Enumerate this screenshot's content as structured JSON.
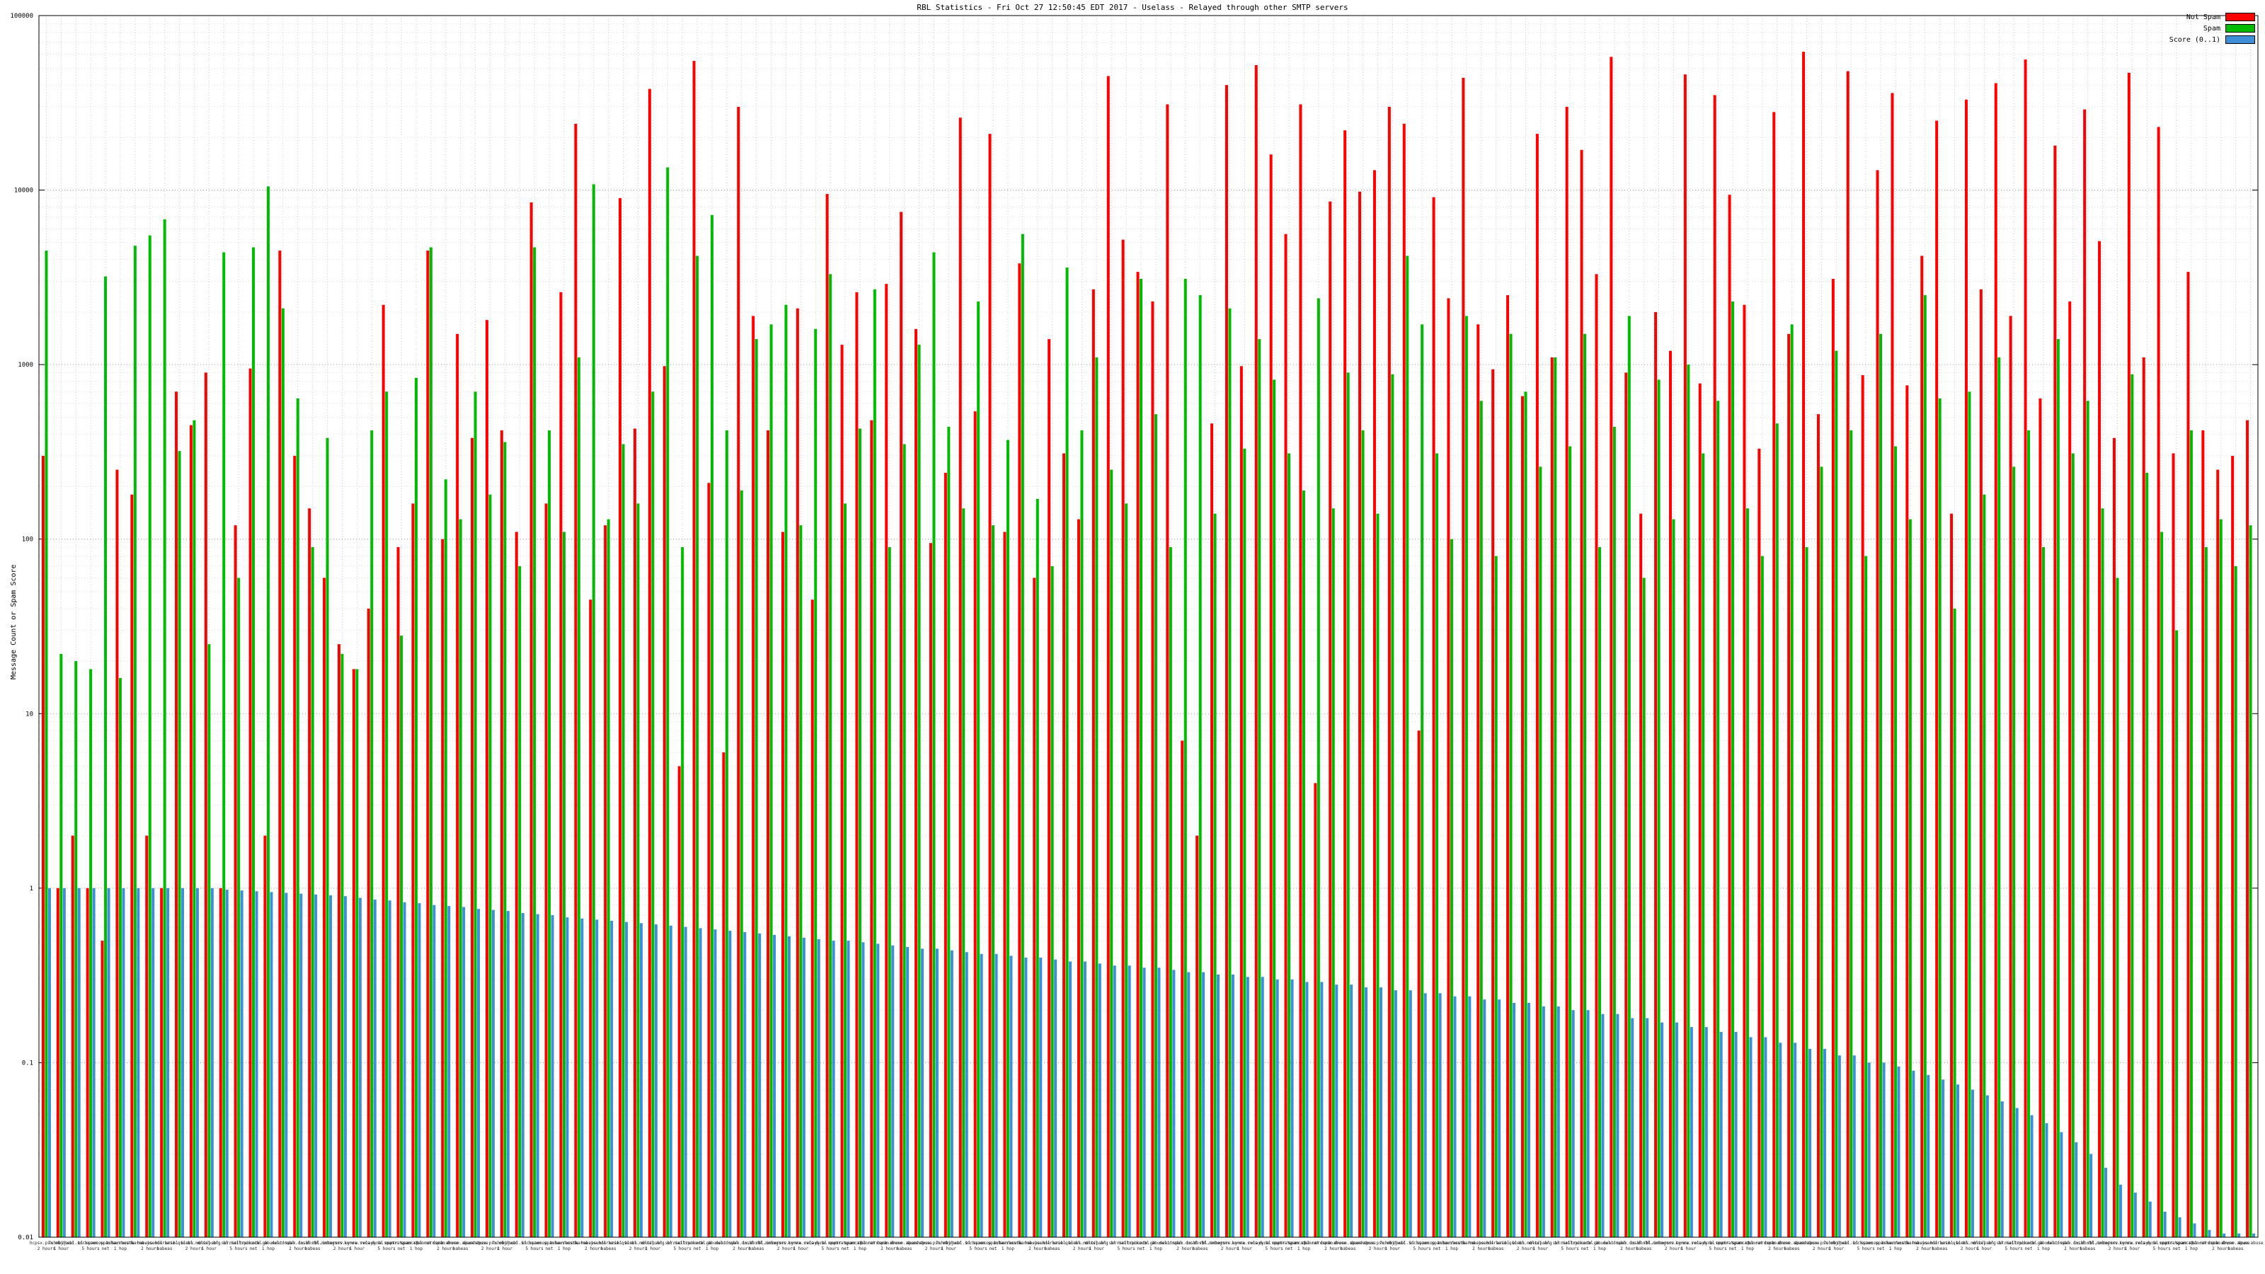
{
  "chart_data": {
    "type": "bar",
    "title": "RBL Statistics - Fri Oct 27 12:50:45 EDT 2017 - Uselass - Relayed through other SMTP servers",
    "ylabel": "Message Count or Spam Score",
    "scale": "log",
    "ylim": [
      0.01,
      100000
    ],
    "grid": true,
    "legend_position": "top-right",
    "y_ticks": [
      "100000",
      "10000",
      "1000",
      "100",
      "10",
      "1",
      "0.1",
      "0.01"
    ],
    "series": [
      {
        "name": "Not Spam",
        "color": "#ff0000",
        "values": [
          300,
          1,
          2,
          1,
          0.5,
          250,
          180,
          2,
          1,
          700,
          450,
          900,
          1,
          120,
          950,
          2,
          4500,
          300,
          150,
          60,
          25,
          18,
          40,
          2200,
          90,
          160,
          4500,
          100,
          1500,
          380,
          1800,
          420,
          110,
          8500,
          160,
          2600,
          24000,
          45,
          120,
          9000,
          430,
          38000,
          980,
          5,
          55000,
          210,
          6,
          30000,
          1900,
          420,
          110,
          2100,
          45,
          9500,
          1300,
          2600,
          480,
          2900,
          7500,
          1600,
          95,
          240,
          26000,
          540,
          21000,
          110,
          3800,
          60,
          1400,
          310,
          130,
          2700,
          45000,
          5200,
          3400,
          2300,
          31000,
          7,
          2,
          460,
          40000,
          980,
          52000,
          16000,
          5600,
          31000,
          4,
          8600,
          22000,
          9800,
          13000,
          30000,
          24000,
          8,
          9100,
          2400,
          44000,
          1700,
          940,
          2500,
          660,
          21000,
          1100,
          30000,
          17000,
          3300,
          58000,
          900,
          140,
          2000,
          1200,
          46000,
          780,
          35000,
          9400,
          2200,
          330,
          28000,
          1500,
          62000,
          520,
          3100,
          48000,
          870,
          13000,
          36000,
          760,
          4200,
          25000,
          140,
          33000,
          2700,
          41000,
          1900,
          56000,
          640,
          18000,
          2300,
          29000,
          5100,
          380,
          47000,
          1100,
          23000,
          310,
          3400,
          420,
          250,
          300,
          480
        ]
      },
      {
        "name": "Spam",
        "color": "#00bb00",
        "values": [
          4500,
          22,
          20,
          18,
          3200,
          16,
          4800,
          5500,
          6800,
          320,
          480,
          25,
          4400,
          60,
          4700,
          10500,
          2100,
          640,
          90,
          380,
          22,
          18,
          420,
          700,
          28,
          840,
          4700,
          220,
          130,
          700,
          180,
          360,
          70,
          4700,
          420,
          110,
          1100,
          10800,
          130,
          350,
          160,
          700,
          13500,
          90,
          4200,
          7200,
          420,
          190,
          1400,
          1700,
          2200,
          120,
          1600,
          3300,
          160,
          430,
          2700,
          90,
          350,
          1300,
          4400,
          440,
          150,
          2300,
          120,
          370,
          5600,
          170,
          70,
          3600,
          420,
          1100,
          250,
          160,
          3100,
          520,
          90,
          3100,
          2500,
          140,
          2100,
          330,
          1400,
          820,
          310,
          190,
          2400,
          150,
          900,
          420,
          140,
          880,
          4200,
          1700,
          310,
          100,
          1900,
          620,
          80,
          1500,
          700,
          260,
          1100,
          340,
          1500,
          90,
          440,
          1900,
          60,
          820,
          130,
          1000,
          310,
          620,
          2300,
          150,
          80,
          460,
          1700,
          90,
          260,
          1200,
          420,
          80,
          1500,
          340,
          130,
          2500,
          640,
          40,
          700,
          180,
          1100,
          260,
          420,
          90,
          1400,
          310,
          620,
          150,
          60,
          880,
          240,
          110,
          30,
          420,
          90,
          130,
          70,
          120
        ]
      },
      {
        "name": "Score (0..1)",
        "color": "#3d8ed8",
        "values": [
          1,
          1,
          1,
          1,
          1,
          1,
          1,
          1,
          1,
          1,
          1,
          1,
          0.98,
          0.97,
          0.96,
          0.95,
          0.94,
          0.93,
          0.92,
          0.91,
          0.9,
          0.88,
          0.86,
          0.85,
          0.83,
          0.82,
          0.8,
          0.79,
          0.78,
          0.76,
          0.75,
          0.74,
          0.72,
          0.71,
          0.7,
          0.68,
          0.67,
          0.66,
          0.65,
          0.64,
          0.63,
          0.62,
          0.61,
          0.6,
          0.59,
          0.58,
          0.57,
          0.56,
          0.55,
          0.54,
          0.53,
          0.52,
          0.51,
          0.5,
          0.5,
          0.49,
          0.48,
          0.47,
          0.46,
          0.45,
          0.45,
          0.44,
          0.43,
          0.42,
          0.42,
          0.41,
          0.4,
          0.4,
          0.39,
          0.38,
          0.38,
          0.37,
          0.36,
          0.36,
          0.35,
          0.35,
          0.34,
          0.33,
          0.33,
          0.32,
          0.32,
          0.31,
          0.31,
          0.3,
          0.3,
          0.29,
          0.29,
          0.28,
          0.28,
          0.27,
          0.27,
          0.26,
          0.26,
          0.25,
          0.25,
          0.24,
          0.24,
          0.23,
          0.23,
          0.22,
          0.22,
          0.21,
          0.21,
          0.2,
          0.2,
          0.19,
          0.19,
          0.18,
          0.18,
          0.17,
          0.17,
          0.16,
          0.16,
          0.15,
          0.15,
          0.14,
          0.14,
          0.13,
          0.13,
          0.12,
          0.12,
          0.11,
          0.11,
          0.1,
          0.1,
          0.095,
          0.09,
          0.085,
          0.08,
          0.075,
          0.07,
          0.065,
          0.06,
          0.055,
          0.05,
          0.045,
          0.04,
          0.035,
          0.03,
          0.025,
          0.02,
          0.018,
          0.016,
          0.014,
          0.013,
          0.012,
          0.011,
          0.01,
          0.01,
          0.01
        ]
      }
    ],
    "categories": [
      "hcpsx.psx.obj",
      "7uhnb.jwsc",
      "dnsbl.sorbs",
      "bl.spamcop",
      "zen.spamhaus",
      "b.barracuda",
      "hostkarma.j",
      "habeas.hil",
      "senderbase.q",
      "uribl.black",
      "surbl.multi",
      "dnswl.org",
      "psbl.surriel",
      "bl.mailspike",
      "truncate.gb",
      "cbl.abuseat",
      "dul.dnsbl",
      "spam.dnsbl",
      "ix.dnsbl.mn",
      "rbl.intersrv",
      "bogons.cymru",
      "korea.svcs",
      "relays.bl",
      "dyna.spamrat",
      "noptr.spamrat",
      "spam.spamrat",
      "bl.nordspam",
      "comb.abuse",
      "drone.abuse",
      "spam.abuse",
      "hcpsx.psx.obj",
      "7uhnb.jwsc",
      "dnsbl.sorbs",
      "bl.spamcop",
      "zen.spamhaus",
      "b.barracuda",
      "hostkarma.j",
      "habeas.hil",
      "senderbase.q",
      "uribl.black",
      "surbl.multi",
      "dnswl.org",
      "psbl.surriel",
      "bl.mailspike",
      "truncate.gb",
      "cbl.abuseat",
      "dul.dnsbl",
      "spam.dnsbl",
      "ix.dnsbl.mn",
      "rbl.intersrv",
      "bogons.cymru",
      "korea.svcs",
      "relays.bl",
      "dyna.spamrat",
      "noptr.spamrat",
      "spam.spamrat",
      "bl.nordspam",
      "comb.abuse",
      "drone.abuse",
      "spam.abuse",
      "hcpsx.psx.obj",
      "7uhnb.jwsc",
      "dnsbl.sorbs",
      "bl.spamcop",
      "zen.spamhaus",
      "b.barracuda",
      "hostkarma.j",
      "habeas.hil",
      "senderbase.q",
      "uribl.black",
      "surbl.multi",
      "dnswl.org",
      "psbl.surriel",
      "bl.mailspike",
      "truncate.gb",
      "cbl.abuseat",
      "dul.dnsbl",
      "spam.dnsbl",
      "ix.dnsbl.mn",
      "rbl.intersrv",
      "bogons.cymru",
      "korea.svcs",
      "relays.bl",
      "dyna.spamrat",
      "noptr.spamrat",
      "spam.spamrat",
      "bl.nordspam",
      "comb.abuse",
      "drone.abuse",
      "spam.abuse",
      "hcpsx.psx.obj",
      "7uhnb.jwsc",
      "dnsbl.sorbs",
      "bl.spamcop",
      "zen.spamhaus",
      "b.barracuda",
      "hostkarma.j",
      "habeas.hil",
      "senderbase.q",
      "uribl.black",
      "surbl.multi",
      "dnswl.org",
      "psbl.surriel",
      "bl.mailspike",
      "truncate.gb",
      "cbl.abuseat",
      "dul.dnsbl",
      "spam.dnsbl",
      "ix.dnsbl.mn",
      "rbl.intersrv",
      "bogons.cymru",
      "korea.svcs",
      "relays.bl",
      "dyna.spamrat",
      "noptr.spamrat",
      "spam.spamrat",
      "bl.nordspam",
      "comb.abuse",
      "drone.abuse",
      "spam.abuse",
      "hcpsx.psx.obj",
      "7uhnb.jwsc",
      "dnsbl.sorbs",
      "bl.spamcop",
      "zen.spamhaus",
      "b.barracuda",
      "hostkarma.j",
      "habeas.hil",
      "senderbase.q",
      "uribl.black",
      "surbl.multi",
      "dnswl.org",
      "psbl.surriel",
      "bl.mailspike",
      "truncate.gb",
      "cbl.abuseat",
      "dul.dnsbl",
      "spam.dnsbl",
      "ix.dnsbl.mn",
      "rbl.intersrv",
      "bogons.cymru",
      "korea.svcs",
      "relays.bl",
      "dyna.spamrat",
      "noptr.spamrat",
      "spam.spamrat",
      "bl.nordspam",
      "comb.abuse",
      "drone.abuse",
      "spam.abuse"
    ],
    "sublabels": [
      "2 hours",
      "1 hour",
      "",
      "5 hours",
      "net",
      "1 hop",
      "",
      "2 hours",
      "habeas",
      "",
      "2 hours",
      "1 hour",
      "",
      "5 hours",
      "net",
      "1 hop",
      "",
      "2 hours",
      "habeas",
      "",
      "2 hours",
      "1 hour",
      "",
      "5 hours",
      "net",
      "1 hop",
      "",
      "2 hours",
      "habeas",
      "",
      "2 hours",
      "1 hour",
      "",
      "5 hours",
      "net",
      "1 hop",
      "",
      "2 hours",
      "habeas",
      "",
      "2 hours",
      "1 hour",
      "",
      "5 hours",
      "net",
      "1 hop",
      "",
      "2 hours",
      "habeas",
      "",
      "2 hours",
      "1 hour",
      "",
      "5 hours",
      "net",
      "1 hop",
      "",
      "2 hours",
      "habeas",
      "",
      "2 hours",
      "1 hour",
      "",
      "5 hours",
      "net",
      "1 hop",
      "",
      "2 hours",
      "habeas",
      "",
      "2 hours",
      "1 hour",
      "",
      "5 hours",
      "net",
      "1 hop",
      "",
      "2 hours",
      "habeas",
      "",
      "2 hours",
      "1 hour",
      "",
      "5 hours",
      "net",
      "1 hop",
      "",
      "2 hours",
      "habeas",
      "",
      "2 hours",
      "1 hour",
      "",
      "5 hours",
      "net",
      "1 hop",
      "",
      "2 hours",
      "habeas",
      "",
      "2 hours",
      "1 hour",
      "",
      "5 hours",
      "net",
      "1 hop",
      "",
      "2 hours",
      "habeas",
      "",
      "2 hours",
      "1 hour",
      "",
      "5 hours",
      "net",
      "1 hop",
      "",
      "2 hours",
      "habeas",
      "",
      "2 hours",
      "1 hour",
      "",
      "5 hours",
      "net",
      "1 hop",
      "",
      "2 hours",
      "habeas",
      "",
      "2 hours",
      "1 hour",
      "",
      "5 hours",
      "net",
      "1 hop",
      "",
      "2 hours",
      "habeas",
      "",
      "2 hours",
      "1 hour",
      "",
      "5 hours",
      "net",
      "1 hop",
      "",
      "2 hours",
      "habeas",
      ""
    ]
  }
}
